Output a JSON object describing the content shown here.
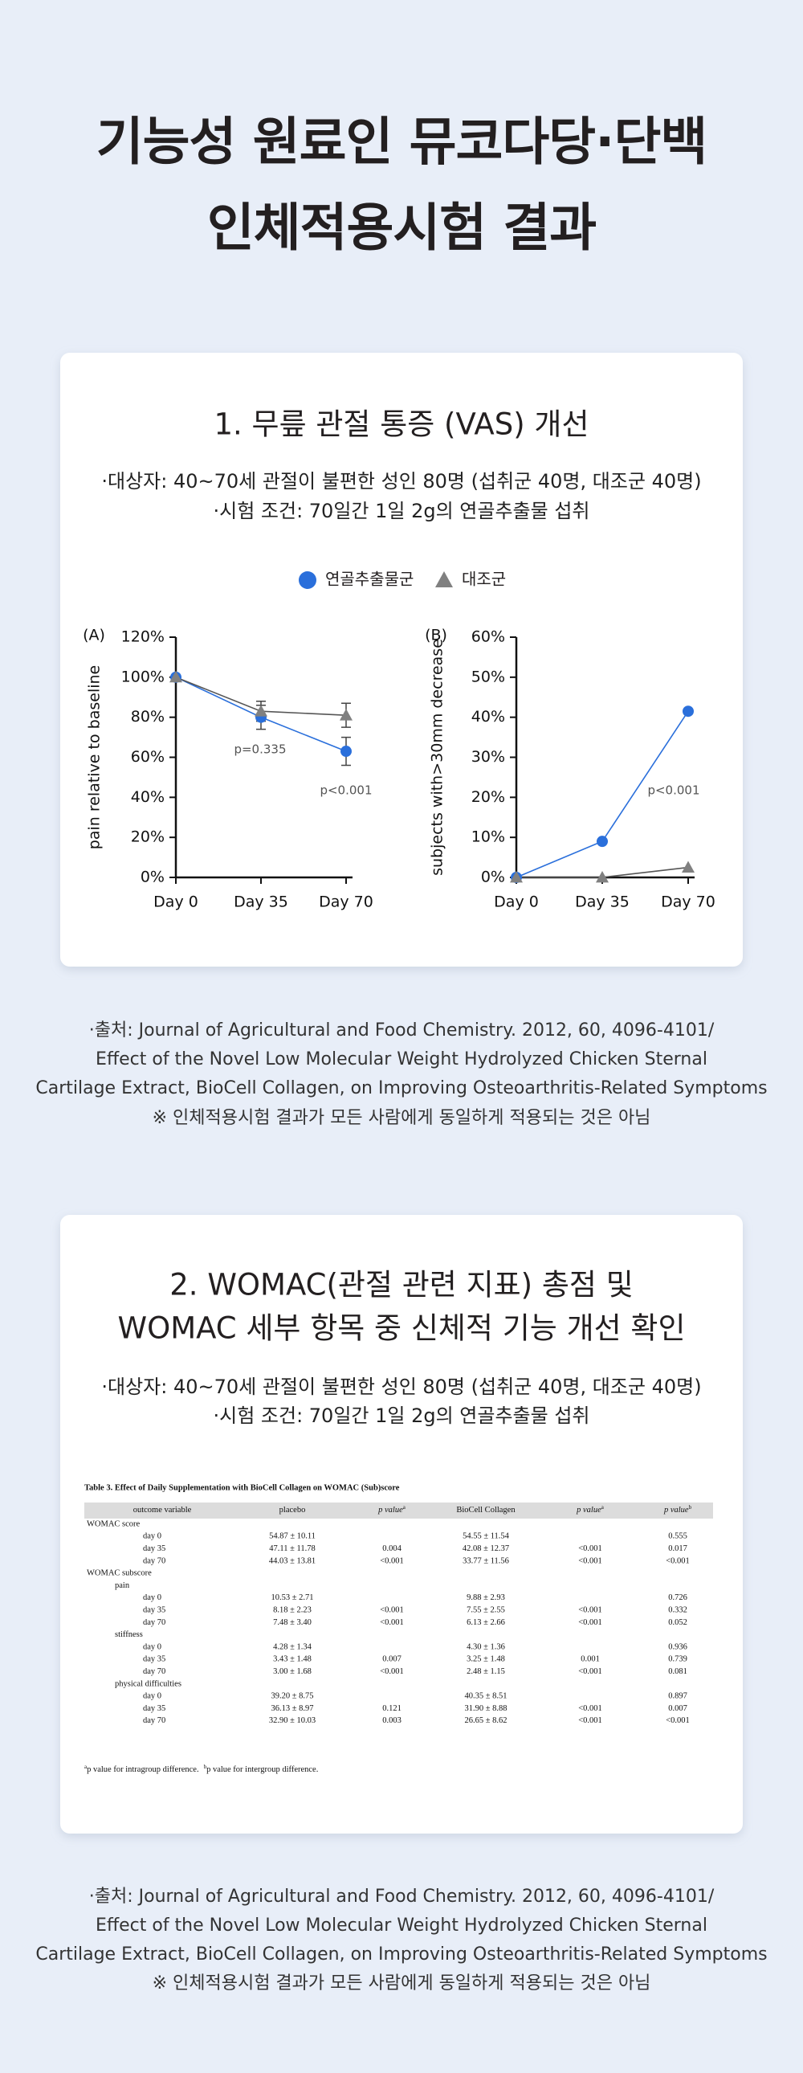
{
  "header": {
    "title_lines": [
      "기능성 원료인 뮤코다당·단백",
      "인체적용시험 결과"
    ]
  },
  "section1": {
    "title": "1. 무릎 관절 통증 (VAS) 개선",
    "subject_lines": [
      "·대상자: 40~70세 관절이 불편한 성인 80명 (섭취군 40명, 대조군 40명)",
      "·시험 조건: 70일간 1일 2g의 연골추출물 섭취"
    ]
  },
  "chart_data": [
    {
      "type": "line",
      "panel": "(A)",
      "y_label": "pain relative to baseline",
      "categories": [
        "Day 0",
        "Day 35",
        "Day 70"
      ],
      "series": [
        {
          "name": "연골추출물군",
          "color": "#2a6fdb",
          "marker": "circle",
          "values": [
            100,
            80,
            63
          ],
          "errors": [
            null,
            6,
            7
          ]
        },
        {
          "name": "대조군",
          "color": "#808080",
          "marker": "triangle",
          "values": [
            100,
            83,
            81
          ],
          "errors": [
            null,
            5,
            6
          ]
        }
      ],
      "ylim": [
        0,
        120
      ],
      "yticks": [
        {
          "value": 0,
          "label": "0%"
        },
        {
          "value": 20,
          "label": "20%"
        },
        {
          "value": 40,
          "label": "40%"
        },
        {
          "value": 60,
          "label": "60%"
        },
        {
          "value": 80,
          "label": "80%"
        },
        {
          "value": 100,
          "label": "100%"
        },
        {
          "value": 120,
          "label": "120%"
        }
      ],
      "annotations": [
        "p=0.335",
        "p<0.001"
      ]
    },
    {
      "type": "line",
      "panel": "(B)",
      "y_label": "subjects with>30mm decrease",
      "categories": [
        "Day 0",
        "Day 35",
        "Day 70"
      ],
      "series": [
        {
          "color": "#2a6fdb",
          "marker": "circle",
          "values": [
            0,
            9,
            41.5
          ]
        },
        {
          "color": "#808080",
          "marker": "triangle",
          "values": [
            0,
            0,
            2.5
          ]
        }
      ],
      "ylim": [
        0,
        60
      ],
      "yticks": [
        {
          "value": 0,
          "label": "0%"
        },
        {
          "value": 10,
          "label": "10%"
        },
        {
          "value": 20,
          "label": "20%"
        },
        {
          "value": 30,
          "label": "30%"
        },
        {
          "value": 40,
          "label": "40%"
        },
        {
          "value": 50,
          "label": "50%"
        },
        {
          "value": 60,
          "label": "60%"
        }
      ],
      "annotations": [
        "p<0.001"
      ]
    }
  ],
  "source1": {
    "lines": [
      "·출처: Journal of Agricultural and Food Chemistry. 2012, 60, 4096-4101/",
      "Effect of the Novel Low Molecular Weight Hydrolyzed Chicken Sternal",
      "Cartilage Extract, BioCell Collagen, on Improving Osteoarthritis-Related Symptoms",
      "※ 인체적용시험 결과가 모든 사람에게 동일하게 적용되는 것은 아님"
    ]
  },
  "section2": {
    "title_lines": [
      "2. WOMAC(관절 관련 지표) 총점 및",
      "WOMAC 세부 항목 중 신체적 기능 개선 확인"
    ],
    "subject_lines": [
      "·대상자: 40~70세 관절이 불편한 성인 80명 (섭취군 40명, 대조군 40명)",
      "·시험 조건: 70일간 1일 2g의 연골추출물 섭취"
    ]
  },
  "table": {
    "title": "Table 3. Effect of Daily Supplementation with BioCell Collagen on WOMAC (Sub)score",
    "headers": [
      {
        "text": "outcome variable"
      },
      {
        "text": "placebo"
      },
      {
        "text": "p value",
        "sup": "a"
      },
      {
        "text": "BioCell Collagen"
      },
      {
        "text": "p value",
        "sup": "a"
      },
      {
        "text": "p value",
        "sup": "b"
      }
    ],
    "groups": [
      {
        "label": "WOMAC score",
        "rows": [
          {
            "label": "day 0",
            "cells": [
              "54.87 ± 10.11",
              null,
              "54.55 ± 11.54",
              null,
              "0.555"
            ]
          },
          {
            "label": "day 35",
            "cells": [
              "47.11 ± 11.78",
              "0.004",
              "42.08 ± 12.37",
              "<0.001",
              "0.017"
            ]
          },
          {
            "label": "day 70",
            "cells": [
              "44.03 ± 13.81",
              "<0.001",
              "33.77 ± 11.56",
              "<0.001",
              "<0.001"
            ]
          }
        ]
      },
      {
        "label": "WOMAC subscore",
        "subgroups": [
          {
            "label": "pain",
            "rows": [
              {
                "label": "day 0",
                "cells": [
                  "10.53 ± 2.71",
                  null,
                  "9.88 ± 2.93",
                  null,
                  "0.726"
                ]
              },
              {
                "label": "day 35",
                "cells": [
                  "8.18 ± 2.23",
                  "<0.001",
                  "7.55 ± 2.55",
                  "<0.001",
                  "0.332"
                ]
              },
              {
                "label": "day 70",
                "cells": [
                  "7.48 ± 3.40",
                  "<0.001",
                  "6.13 ± 2.66",
                  "<0.001",
                  "0.052"
                ]
              }
            ]
          },
          {
            "label": "stiffness",
            "rows": [
              {
                "label": "day 0",
                "cells": [
                  "4.28 ± 1.34",
                  null,
                  "4.30 ± 1.36",
                  null,
                  "0.936"
                ]
              },
              {
                "label": "day 35",
                "cells": [
                  "3.43 ± 1.48",
                  "0.007",
                  "3.25 ± 1.48",
                  "0.001",
                  "0.739"
                ]
              },
              {
                "label": "day 70",
                "cells": [
                  "3.00 ± 1.68",
                  "<0.001",
                  "2.48 ± 1.15",
                  "<0.001",
                  "0.081"
                ]
              }
            ]
          },
          {
            "label": "physical difficulties",
            "rows": [
              {
                "label": "day 0",
                "cells": [
                  "39.20 ± 8.75",
                  null,
                  "40.35 ± 8.51",
                  null,
                  "0.897"
                ]
              },
              {
                "label": "day 35",
                "cells": [
                  "36.13 ± 8.97",
                  "0.121",
                  "31.90 ± 8.88",
                  "<0.001",
                  "0.007"
                ]
              },
              {
                "label": "day 70",
                "cells": [
                  "32.90 ± 10.03",
                  "0.003",
                  "26.65 ± 8.62",
                  "<0.001",
                  "<0.001"
                ]
              }
            ]
          }
        ]
      }
    ],
    "footnotes": [
      {
        "sup": "a",
        "text": "p value for intragroup difference."
      },
      {
        "sup": "b",
        "text": "p value for intergroup difference."
      }
    ]
  },
  "source2": {
    "lines": [
      "·출처: Journal of Agricultural and Food Chemistry. 2012, 60, 4096-4101/",
      "Effect of the Novel Low Molecular Weight Hydrolyzed Chicken Sternal",
      "Cartilage Extract, BioCell Collagen, on Improving Osteoarthritis-Related Symptoms",
      "※ 인체적용시험 결과가 모든 사람에게 동일하게 적용되는 것은 아님"
    ]
  }
}
